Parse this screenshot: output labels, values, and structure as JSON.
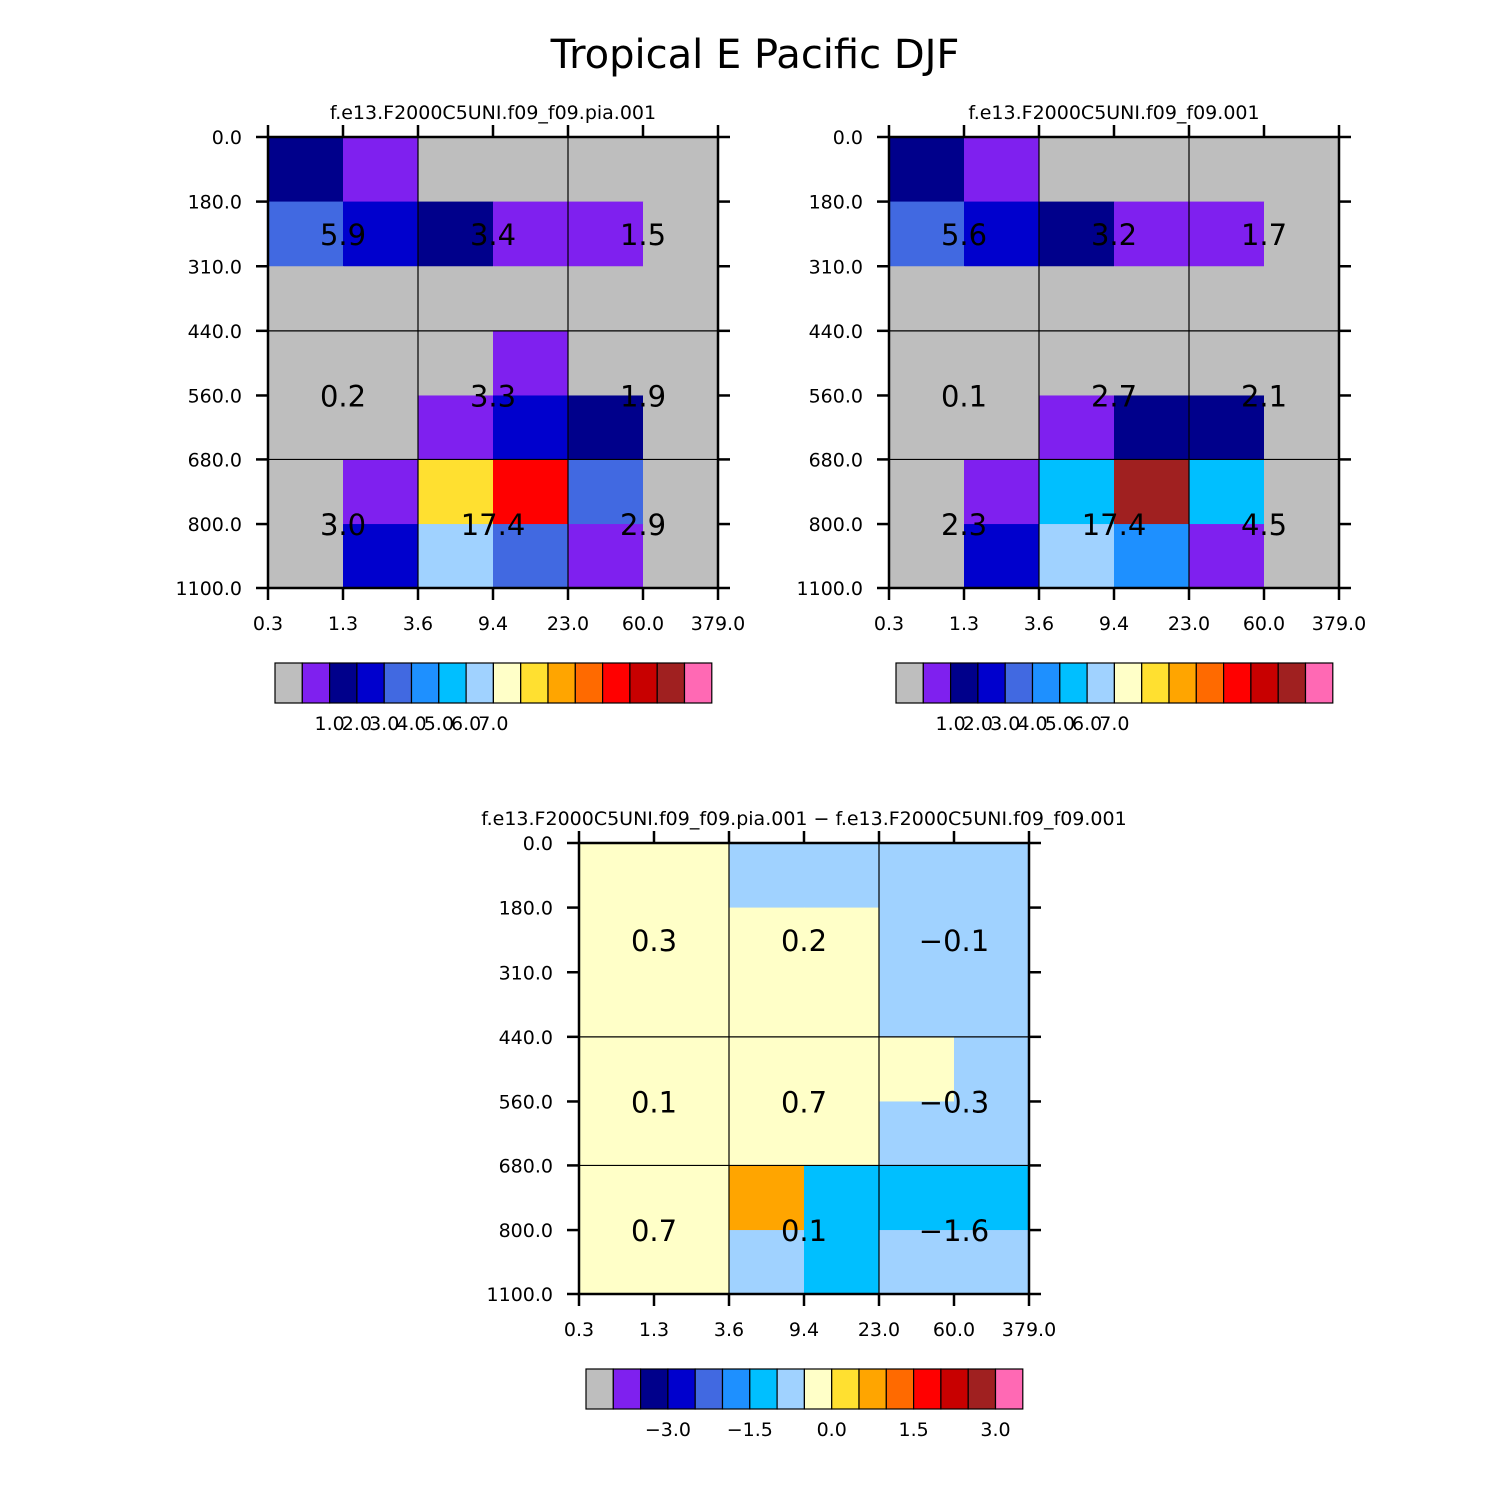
{
  "title": "Tropical E Pacific DJF",
  "colors": {
    "palette": [
      "#bebebe",
      "#7f20ef",
      "#00008b",
      "#0000cd",
      "#4169e1",
      "#1e90ff",
      "#00bfff",
      "#a0d2ff",
      "#ffffc8",
      "#ffe030",
      "#ffa500",
      "#ff6a00",
      "#ff0000",
      "#c80000",
      "#a02020",
      "#ff69b4"
    ]
  },
  "chart_data": [
    {
      "type": "heatmap",
      "title": "f.e13.F2000C5UNI.f09_f09.pia.001",
      "xticks": [
        "0.3",
        "1.3",
        "3.6",
        "9.4",
        "23.0",
        "60.0",
        "379.0"
      ],
      "yticks": [
        "0.0",
        "180.0",
        "310.0",
        "440.0",
        "560.0",
        "680.0",
        "800.0",
        "1100.0"
      ],
      "fine_cells": [
        [
          2,
          1,
          0,
          0,
          0,
          0
        ],
        [
          4,
          3,
          2,
          1,
          1,
          0
        ],
        [
          0,
          0,
          0,
          0,
          0,
          0
        ],
        [
          0,
          0,
          0,
          1,
          0,
          0
        ],
        [
          0,
          0,
          1,
          3,
          2,
          0
        ],
        [
          0,
          1,
          9,
          12,
          4,
          0
        ],
        [
          0,
          3,
          7,
          4,
          1,
          0
        ]
      ],
      "summary_values": [
        [
          "5.9",
          "3.4",
          "1.5"
        ],
        [
          "0.2",
          "3.3",
          "1.9"
        ],
        [
          "3.0",
          "17.4",
          "2.9"
        ]
      ],
      "colorbar_labels": [
        "1.0",
        "2.0",
        "3.0",
        "4.0",
        "5.0",
        "6.0",
        "7.0"
      ]
    },
    {
      "type": "heatmap",
      "title": "f.e13.F2000C5UNI.f09_f09.001",
      "xticks": [
        "0.3",
        "1.3",
        "3.6",
        "9.4",
        "23.0",
        "60.0",
        "379.0"
      ],
      "yticks": [
        "0.0",
        "180.0",
        "310.0",
        "440.0",
        "560.0",
        "680.0",
        "800.0",
        "1100.0"
      ],
      "fine_cells": [
        [
          2,
          1,
          0,
          0,
          0,
          0
        ],
        [
          4,
          3,
          2,
          1,
          1,
          0
        ],
        [
          0,
          0,
          0,
          0,
          0,
          0
        ],
        [
          0,
          0,
          0,
          0,
          0,
          0
        ],
        [
          0,
          0,
          1,
          2,
          2,
          0
        ],
        [
          0,
          1,
          6,
          14,
          6,
          0
        ],
        [
          0,
          3,
          7,
          5,
          1,
          0
        ]
      ],
      "summary_values": [
        [
          "5.6",
          "3.2",
          "1.7"
        ],
        [
          "0.1",
          "2.7",
          "2.1"
        ],
        [
          "2.3",
          "17.4",
          "4.5"
        ]
      ],
      "colorbar_labels": [
        "1.0",
        "2.0",
        "3.0",
        "4.0",
        "5.0",
        "6.0",
        "7.0"
      ]
    },
    {
      "type": "heatmap",
      "title": "f.e13.F2000C5UNI.f09_f09.pia.001 − f.e13.F2000C5UNI.f09_f09.001",
      "xticks": [
        "0.3",
        "1.3",
        "3.6",
        "9.4",
        "23.0",
        "60.0",
        "379.0"
      ],
      "yticks": [
        "0.0",
        "180.0",
        "310.0",
        "440.0",
        "560.0",
        "680.0",
        "800.0",
        "1100.0"
      ],
      "fine_cells": [
        [
          8,
          8,
          7,
          7,
          7,
          7
        ],
        [
          8,
          8,
          8,
          8,
          7,
          7
        ],
        [
          8,
          8,
          8,
          8,
          7,
          7
        ],
        [
          8,
          8,
          8,
          8,
          8,
          7
        ],
        [
          8,
          8,
          8,
          8,
          7,
          7
        ],
        [
          8,
          8,
          10,
          6,
          6,
          6
        ],
        [
          8,
          8,
          7,
          6,
          7,
          7
        ]
      ],
      "summary_values": [
        [
          "0.3",
          "0.2",
          "−0.1"
        ],
        [
          "0.1",
          "0.7",
          "−0.3"
        ],
        [
          "0.7",
          "0.1",
          "−1.6"
        ]
      ],
      "colorbar_labels": [
        "−3.0",
        "−1.5",
        "0.0",
        "1.5",
        "3.0"
      ]
    }
  ]
}
